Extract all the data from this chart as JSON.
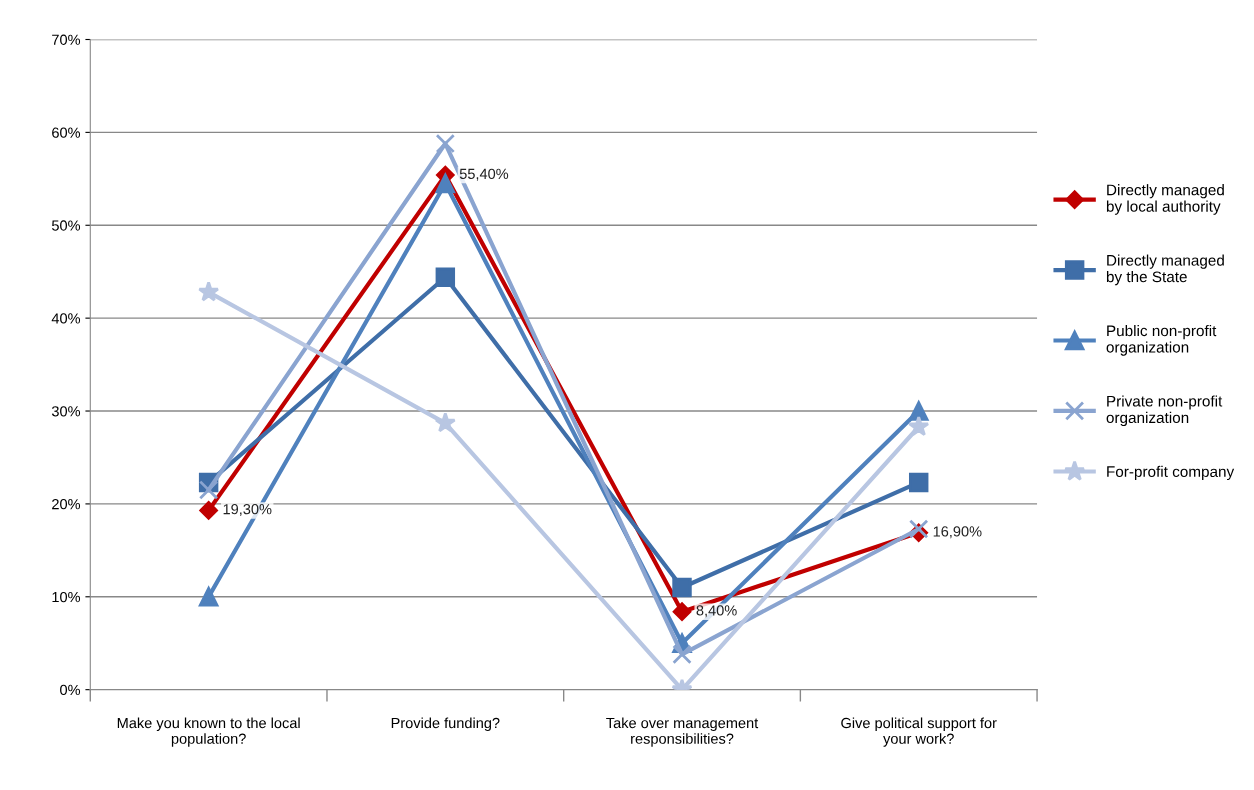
{
  "chart_data": {
    "type": "line",
    "categories": [
      "Make you known to the local population?",
      "Provide funding?",
      "Take over management responsibilities?",
      "Give political support for your work?"
    ],
    "series": [
      {
        "name": "Directly managed by local authority",
        "color": "#c00000",
        "marker": "diamond",
        "values": [
          19.3,
          55.4,
          8.4,
          16.9
        ],
        "value_labels": [
          "19,30%",
          "55,40%",
          "8,40%",
          "16,90%"
        ]
      },
      {
        "name": "Directly managed by the State",
        "color": "#3f6ea8",
        "marker": "square",
        "values": [
          22.3,
          44.4,
          11.0,
          22.3
        ]
      },
      {
        "name": "Public non-profit organization",
        "color": "#4f81bd",
        "marker": "triangle",
        "values": [
          10,
          54.5,
          5.0,
          30
        ]
      },
      {
        "name": "Private non-profit organization",
        "color": "#8aa4d0",
        "marker": "cross",
        "values": [
          21.5,
          58.8,
          3.8,
          17.3
        ]
      },
      {
        "name": "For-profit company",
        "color": "#b8c6e2",
        "marker": "star",
        "values": [
          42.8,
          28.7,
          0,
          28.3
        ]
      }
    ],
    "ylim": [
      0,
      70
    ],
    "yticks": [
      {
        "value": 0,
        "label": "0%"
      },
      {
        "value": 10,
        "label": "10%"
      },
      {
        "value": 20,
        "label": "20%"
      },
      {
        "value": 30,
        "label": "30%"
      },
      {
        "value": 40,
        "label": "40%"
      },
      {
        "value": 50,
        "label": "50%"
      },
      {
        "value": 60,
        "label": "60%"
      },
      {
        "value": 70,
        "label": "70%"
      }
    ],
    "grid": "y",
    "legend": "right"
  }
}
